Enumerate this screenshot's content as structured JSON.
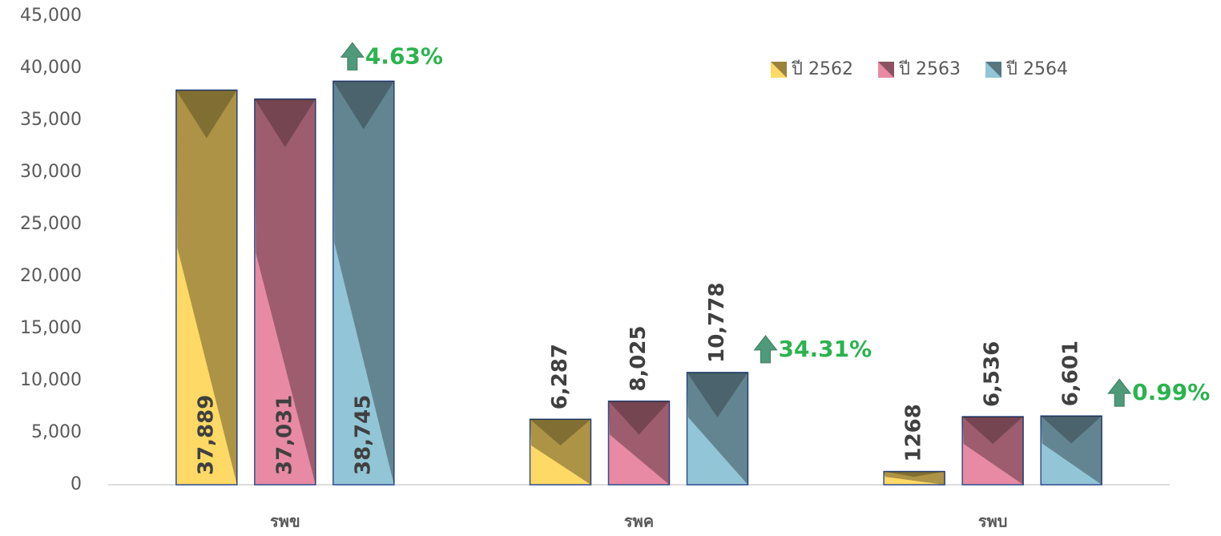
{
  "chart_data": {
    "type": "bar",
    "categories": [
      "รพข",
      "รพค",
      "รพบ"
    ],
    "series": [
      {
        "name": "ปี 2562",
        "color": "#ffd966",
        "values": [
          37889,
          6287,
          1268
        ],
        "value_labels": [
          "37,889",
          "6,287",
          "1268"
        ]
      },
      {
        "name": "ปี 2563",
        "color": "#e88aa3",
        "values": [
          37031,
          8025,
          6536
        ],
        "value_labels": [
          "37,031",
          "8,025",
          "6,536"
        ]
      },
      {
        "name": "ปี 2564",
        "color": "#92c5d6",
        "values": [
          38745,
          10778,
          6601
        ],
        "value_labels": [
          "38,745",
          "10,778",
          "6,601"
        ]
      }
    ],
    "annotations": [
      "4.63%",
      "34.31%",
      "0.99%"
    ],
    "annotation_color": "#2bb34f",
    "ylim": [
      0,
      45000
    ],
    "yticks": [
      0,
      {
        "value": 5000,
        "label": "5,000"
      },
      {
        "value": 10000,
        "label": "10,000"
      },
      {
        "value": 15000,
        "label": "15,000"
      },
      {
        "value": 20000,
        "label": "20,000"
      },
      {
        "value": 25000,
        "label": "25,000"
      },
      {
        "value": 30000,
        "label": "30,000"
      },
      {
        "value": 35000,
        "label": "35,000"
      },
      {
        "value": 40000,
        "label": "40,000"
      },
      {
        "value": 45000,
        "label": "45,000"
      }
    ],
    "grid": false,
    "legend": "top-right"
  }
}
